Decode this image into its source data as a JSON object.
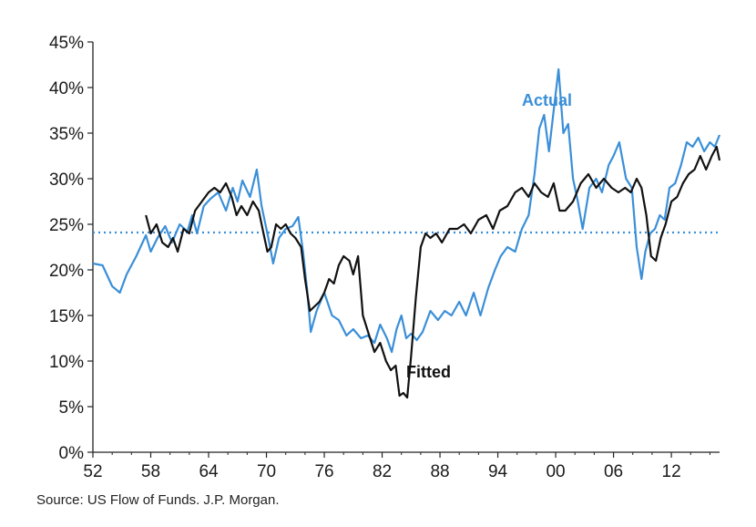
{
  "chart_data": {
    "type": "line",
    "xlim": [
      1952,
      2017
    ],
    "ylim": [
      0,
      45
    ],
    "y_ticks": [
      {
        "value": 0,
        "label": "0%"
      },
      {
        "value": 5,
        "label": "5%"
      },
      {
        "value": 10,
        "label": "10%"
      },
      {
        "value": 15,
        "label": "15%"
      },
      {
        "value": 20,
        "label": "20%"
      },
      {
        "value": 25,
        "label": "25%"
      },
      {
        "value": 30,
        "label": "30%"
      },
      {
        "value": 35,
        "label": "35%"
      },
      {
        "value": 40,
        "label": "40%"
      },
      {
        "value": 45,
        "label": "45%"
      }
    ],
    "x_ticks": [
      {
        "value": 1952,
        "label": "52"
      },
      {
        "value": 1958,
        "label": "58"
      },
      {
        "value": 1964,
        "label": "64"
      },
      {
        "value": 1970,
        "label": "70"
      },
      {
        "value": 1976,
        "label": "76"
      },
      {
        "value": 1982,
        "label": "82"
      },
      {
        "value": 1988,
        "label": "88"
      },
      {
        "value": 1994,
        "label": "94"
      },
      {
        "value": 2000,
        "label": "00"
      },
      {
        "value": 2006,
        "label": "06"
      },
      {
        "value": 2012,
        "label": "12"
      }
    ],
    "grid": false,
    "reference_line": {
      "value": 24.1,
      "style": "dotted",
      "color": "#3a8fd8"
    },
    "series": [
      {
        "name": "Actual",
        "color": "#3a8fd8",
        "label_position": [
          1996.5,
          38
        ],
        "x": [
          1952.0,
          1953.0,
          1954.0,
          1954.8,
          1955.5,
          1956.5,
          1957.5,
          1958.0,
          1958.7,
          1959.5,
          1960.2,
          1961.0,
          1961.8,
          1962.3,
          1962.8,
          1963.5,
          1964.2,
          1965.0,
          1965.8,
          1966.5,
          1967.0,
          1967.5,
          1968.3,
          1969.0,
          1969.5,
          1970.2,
          1970.7,
          1971.3,
          1972.0,
          1972.7,
          1973.3,
          1973.8,
          1974.2,
          1974.6,
          1975.2,
          1976.0,
          1976.8,
          1977.5,
          1978.3,
          1979.0,
          1979.8,
          1980.5,
          1981.2,
          1981.8,
          1982.5,
          1983.0,
          1983.5,
          1984.0,
          1984.5,
          1985.0,
          1985.6,
          1986.2,
          1987.0,
          1987.8,
          1988.5,
          1989.2,
          1990.0,
          1990.7,
          1991.5,
          1992.2,
          1993.0,
          1993.7,
          1994.3,
          1995.0,
          1995.8,
          1996.5,
          1997.2,
          1997.8,
          1998.3,
          1998.8,
          1999.3,
          1999.8,
          2000.3,
          2000.8,
          2001.3,
          2001.8,
          2002.3,
          2002.8,
          2003.5,
          2004.2,
          2004.8,
          2005.5,
          2006.0,
          2006.6,
          2007.3,
          2007.9,
          2008.4,
          2008.9,
          2009.3,
          2009.8,
          2010.3,
          2010.8,
          2011.3,
          2011.8,
          2012.4,
          2013.0,
          2013.6,
          2014.2,
          2014.8,
          2015.4,
          2016.0,
          2016.5,
          2017.0
        ],
        "y": [
          20.7,
          20.5,
          18.2,
          17.5,
          19.5,
          21.5,
          23.8,
          22.0,
          23.5,
          24.8,
          23.0,
          25.0,
          24.2,
          26.0,
          24.0,
          27.0,
          27.8,
          28.5,
          26.5,
          29.0,
          27.5,
          29.8,
          28.0,
          31.0,
          27.0,
          23.5,
          20.7,
          23.5,
          24.5,
          24.8,
          25.8,
          22.0,
          18.0,
          13.2,
          15.5,
          17.5,
          15.0,
          14.5,
          12.8,
          13.5,
          12.5,
          12.8,
          12.0,
          14.0,
          12.5,
          11.0,
          13.5,
          15.0,
          12.5,
          13.0,
          12.3,
          13.2,
          15.5,
          14.5,
          15.5,
          15.0,
          16.5,
          15.0,
          17.5,
          15.0,
          18.0,
          20.0,
          21.5,
          22.5,
          22.0,
          24.5,
          26.0,
          30.5,
          35.5,
          37.0,
          33.0,
          37.5,
          42.0,
          35.0,
          36.0,
          30.0,
          27.5,
          24.5,
          29.0,
          30.0,
          28.5,
          31.5,
          32.5,
          34.0,
          30.0,
          29.0,
          22.5,
          19.0,
          22.0,
          24.0,
          24.5,
          26.0,
          25.5,
          29.0,
          29.5,
          31.5,
          34.0,
          33.5,
          34.5,
          33.0,
          34.0,
          33.5,
          34.8
        ]
      },
      {
        "name": "Fitted",
        "color": "#111111",
        "label_position": [
          1984.5,
          8.2
        ],
        "x": [
          1957.5,
          1958.0,
          1958.6,
          1959.2,
          1959.8,
          1960.3,
          1960.8,
          1961.4,
          1962.0,
          1962.6,
          1963.3,
          1964.0,
          1964.6,
          1965.2,
          1965.8,
          1966.4,
          1966.9,
          1967.4,
          1968.0,
          1968.6,
          1969.2,
          1969.7,
          1970.1,
          1970.5,
          1971.0,
          1971.5,
          1972.0,
          1972.5,
          1973.0,
          1973.6,
          1974.0,
          1974.5,
          1975.0,
          1975.5,
          1976.0,
          1976.5,
          1977.0,
          1977.5,
          1978.0,
          1978.6,
          1979.0,
          1979.5,
          1980.0,
          1980.6,
          1981.2,
          1981.8,
          1982.4,
          1982.9,
          1983.4,
          1983.8,
          1984.2,
          1984.6,
          1985.0,
          1985.5,
          1986.0,
          1986.5,
          1987.0,
          1987.6,
          1988.2,
          1989.0,
          1989.8,
          1990.5,
          1991.2,
          1992.0,
          1992.8,
          1993.5,
          1994.2,
          1995.0,
          1995.8,
          1996.5,
          1997.2,
          1997.8,
          1998.5,
          1999.2,
          1999.8,
          2000.4,
          2001.0,
          2001.8,
          2002.6,
          2003.4,
          2004.2,
          2005.0,
          2005.8,
          2006.5,
          2007.2,
          2007.8,
          2008.4,
          2008.9,
          2009.4,
          2009.9,
          2010.4,
          2010.9,
          2011.4,
          2012.0,
          2012.6,
          2013.2,
          2013.8,
          2014.4,
          2015.0,
          2015.6,
          2016.2,
          2016.7,
          2017.0
        ],
        "y": [
          26.0,
          24.0,
          25.0,
          23.0,
          22.5,
          23.5,
          22.0,
          24.5,
          24.0,
          26.5,
          27.5,
          28.5,
          29.0,
          28.5,
          29.5,
          28.0,
          26.0,
          27.0,
          26.0,
          27.5,
          26.5,
          24.0,
          22.0,
          22.5,
          25.0,
          24.5,
          25.0,
          24.0,
          23.5,
          22.5,
          19.0,
          15.5,
          16.0,
          16.5,
          17.5,
          19.0,
          18.5,
          20.5,
          21.5,
          21.0,
          19.5,
          21.5,
          15.0,
          13.0,
          11.0,
          12.0,
          10.0,
          9.0,
          9.5,
          6.2,
          6.5,
          6.0,
          10.5,
          17.0,
          22.5,
          24.0,
          23.5,
          24.0,
          23.0,
          24.5,
          24.5,
          25.0,
          24.0,
          25.5,
          26.0,
          24.5,
          26.5,
          27.0,
          28.5,
          29.0,
          28.0,
          29.5,
          28.5,
          28.0,
          29.5,
          26.5,
          26.5,
          27.5,
          29.5,
          30.5,
          29.0,
          30.0,
          29.0,
          28.5,
          29.0,
          28.5,
          30.0,
          29.0,
          26.0,
          21.5,
          21.0,
          23.5,
          25.0,
          27.5,
          28.0,
          29.5,
          30.5,
          31.0,
          32.5,
          31.0,
          32.5,
          33.5,
          32.0
        ]
      }
    ]
  },
  "source_note": "Source: US Flow of Funds. J.P. Morgan."
}
